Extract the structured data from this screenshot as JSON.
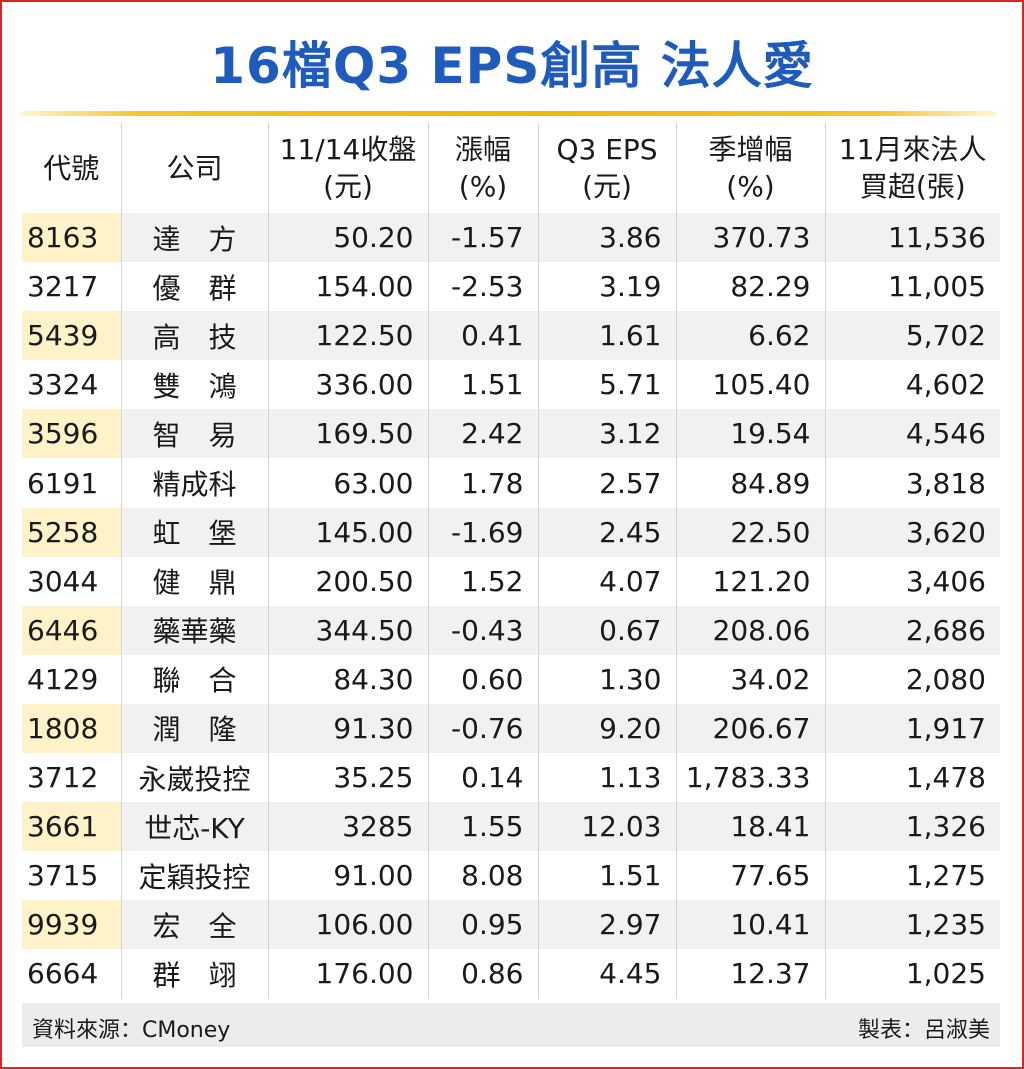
{
  "chart_data": {
    "type": "table",
    "title": "16檔Q3 EPS創高 法人愛",
    "columns": [
      [
        "代號"
      ],
      [
        "公司"
      ],
      [
        "11/14收盤",
        "(元)"
      ],
      [
        "漲幅",
        "(%)"
      ],
      [
        "Q3 EPS",
        "(元)"
      ],
      [
        "季增幅",
        "(%)"
      ],
      [
        "11月來法人",
        "買超(張)"
      ]
    ],
    "rows": [
      [
        "8163",
        "達　方",
        "50.20",
        "-1.57",
        "3.86",
        "370.73",
        "11,536"
      ],
      [
        "3217",
        "優　群",
        "154.00",
        "-2.53",
        "3.19",
        "82.29",
        "11,005"
      ],
      [
        "5439",
        "高　技",
        "122.50",
        "0.41",
        "1.61",
        "6.62",
        "5,702"
      ],
      [
        "3324",
        "雙　鴻",
        "336.00",
        "1.51",
        "5.71",
        "105.40",
        "4,602"
      ],
      [
        "3596",
        "智　易",
        "169.50",
        "2.42",
        "3.12",
        "19.54",
        "4,546"
      ],
      [
        "6191",
        "精成科",
        "63.00",
        "1.78",
        "2.57",
        "84.89",
        "3,818"
      ],
      [
        "5258",
        "虹　堡",
        "145.00",
        "-1.69",
        "2.45",
        "22.50",
        "3,620"
      ],
      [
        "3044",
        "健　鼎",
        "200.50",
        "1.52",
        "4.07",
        "121.20",
        "3,406"
      ],
      [
        "6446",
        "藥華藥",
        "344.50",
        "-0.43",
        "0.67",
        "208.06",
        "2,686"
      ],
      [
        "4129",
        "聯　合",
        "84.30",
        "0.60",
        "1.30",
        "34.02",
        "2,080"
      ],
      [
        "1808",
        "潤　隆",
        "91.30",
        "-0.76",
        "9.20",
        "206.67",
        "1,917"
      ],
      [
        "3712",
        "永崴投控",
        "35.25",
        "0.14",
        "1.13",
        "1,783.33",
        "1,478"
      ],
      [
        "3661",
        "世芯-KY",
        "3285",
        "1.55",
        "12.03",
        "18.41",
        "1,326"
      ],
      [
        "3715",
        "定穎投控",
        "91.00",
        "8.08",
        "1.51",
        "77.65",
        "1,275"
      ],
      [
        "9939",
        "宏　全",
        "106.00",
        "0.95",
        "2.97",
        "10.41",
        "1,235"
      ],
      [
        "6664",
        "群　翊",
        "176.00",
        "0.86",
        "4.45",
        "12.37",
        "1,025"
      ]
    ],
    "source": "資料來源：CMoney",
    "maker": "製表：呂淑美"
  },
  "colors": {
    "title": "#1f5bbd",
    "border": "#d9262c",
    "accent_line": "#f2b700",
    "code_highlight": "#fdf2c8",
    "stripe": "#f1f1f1"
  }
}
